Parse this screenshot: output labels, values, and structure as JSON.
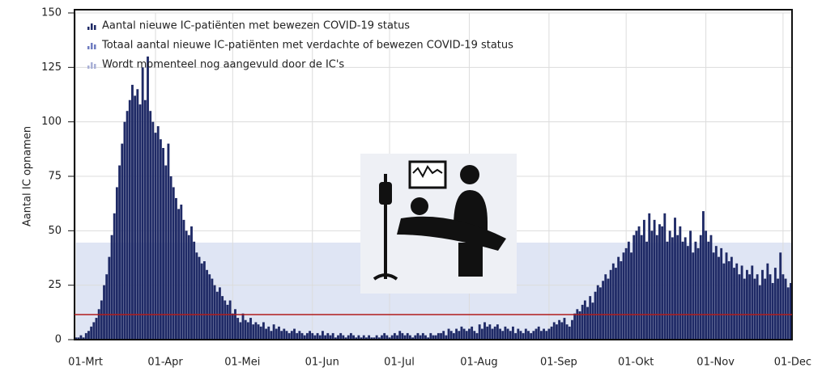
{
  "chart_data": {
    "type": "bar",
    "y_label": "Aantal IC opnamen",
    "legend": [
      {
        "name": "Aantal nieuwe IC-patiënten met bewezen COVID-19 status",
        "color": "#1f2a66"
      },
      {
        "name": "Totaal aantal nieuwe IC-patiënten met verdachte of bewezen COVID-19 status",
        "color": "#6f7cc0"
      },
      {
        "name": "Wordt momenteel nog aangevuld door de IC's",
        "color": "#a9b0d6"
      }
    ],
    "color": "#1f2a66",
    "reference_line": {
      "value": 11.5,
      "color": "#b01c1c"
    },
    "ylim": [
      0,
      150
    ],
    "yticks": [
      0,
      25,
      50,
      75,
      100,
      125,
      150
    ],
    "grid": true,
    "categories": [
      "01-Mrt",
      null,
      null,
      null,
      null,
      null,
      null,
      null,
      null,
      null,
      null,
      null,
      null,
      null,
      null,
      null,
      null,
      null,
      null,
      null,
      null,
      null,
      null,
      null,
      null,
      null,
      null,
      null,
      null,
      null,
      null,
      "01-Apr",
      null,
      null,
      null,
      null,
      null,
      null,
      null,
      null,
      null,
      null,
      null,
      null,
      null,
      null,
      null,
      null,
      null,
      null,
      null,
      null,
      null,
      null,
      null,
      null,
      null,
      null,
      null,
      null,
      null,
      "01-Mei",
      null,
      null,
      null,
      null,
      null,
      null,
      null,
      null,
      null,
      null,
      null,
      null,
      null,
      null,
      null,
      null,
      null,
      null,
      null,
      null,
      null,
      null,
      null,
      null,
      null,
      null,
      null,
      null,
      null,
      null,
      "01-Jun",
      null,
      null,
      null,
      null,
      null,
      null,
      null,
      null,
      null,
      null,
      null,
      null,
      null,
      null,
      null,
      null,
      null,
      null,
      null,
      null,
      null,
      null,
      null,
      null,
      null,
      null,
      null,
      null,
      null,
      "01-Jul",
      null,
      null,
      null,
      null,
      null,
      null,
      null,
      null,
      null,
      null,
      null,
      null,
      null,
      null,
      null,
      null,
      null,
      null,
      null,
      null,
      null,
      null,
      null,
      null,
      null,
      null,
      null,
      null,
      null,
      null,
      "01-Aug",
      null,
      null,
      null,
      null,
      null,
      null,
      null,
      null,
      null,
      null,
      null,
      null,
      null,
      null,
      null,
      null,
      null,
      null,
      null,
      null,
      null,
      null,
      null,
      null,
      null,
      null,
      null,
      null,
      null,
      null,
      "01-Sep",
      null,
      null,
      null,
      null,
      null,
      null,
      null,
      null,
      null,
      null,
      null,
      null,
      null,
      null,
      null,
      null,
      null,
      null,
      null,
      null,
      null,
      null,
      null,
      null,
      null,
      null,
      null,
      null,
      null,
      "01-Okt",
      null,
      null,
      null,
      null,
      null,
      null,
      null,
      null,
      null,
      null,
      null,
      null,
      null,
      null,
      null,
      null,
      null,
      null,
      null,
      null,
      null,
      null,
      null,
      null,
      null,
      null,
      null,
      null,
      null,
      null,
      "01-Nov",
      null,
      null,
      null,
      null,
      null,
      null,
      null,
      null,
      null,
      null,
      null,
      null,
      null,
      null,
      null,
      null,
      null,
      null,
      null,
      null,
      null,
      null,
      null,
      null,
      null,
      null,
      null,
      null,
      null,
      "01-Dec",
      null,
      null,
      null
    ],
    "values": [
      1,
      1,
      2,
      1,
      3,
      4,
      6,
      8,
      10,
      14,
      18,
      25,
      30,
      38,
      48,
      58,
      70,
      80,
      90,
      100,
      105,
      110,
      117,
      112,
      115,
      108,
      125,
      110,
      130,
      105,
      100,
      95,
      98,
      92,
      88,
      80,
      90,
      75,
      70,
      65,
      60,
      62,
      55,
      50,
      48,
      52,
      45,
      40,
      38,
      35,
      36,
      32,
      30,
      28,
      25,
      22,
      24,
      20,
      18,
      16,
      18,
      12,
      14,
      10,
      8,
      12,
      9,
      8,
      10,
      7,
      8,
      7,
      6,
      8,
      5,
      6,
      4,
      7,
      5,
      6,
      4,
      5,
      4,
      3,
      4,
      5,
      3,
      4,
      3,
      2,
      3,
      4,
      3,
      2,
      3,
      2,
      4,
      2,
      3,
      2,
      3,
      1,
      2,
      3,
      2,
      1,
      2,
      3,
      2,
      1,
      2,
      1,
      2,
      1,
      2,
      1,
      1,
      2,
      1,
      2,
      3,
      2,
      1,
      2,
      3,
      2,
      4,
      3,
      2,
      3,
      2,
      1,
      2,
      3,
      2,
      3,
      2,
      1,
      3,
      2,
      2,
      3,
      3,
      4,
      2,
      5,
      4,
      3,
      5,
      4,
      6,
      5,
      4,
      5,
      6,
      4,
      3,
      7,
      5,
      8,
      6,
      7,
      5,
      6,
      7,
      5,
      4,
      6,
      5,
      4,
      6,
      3,
      5,
      4,
      3,
      5,
      4,
      3,
      4,
      5,
      6,
      4,
      5,
      4,
      5,
      6,
      8,
      7,
      9,
      8,
      10,
      7,
      6,
      9,
      12,
      14,
      13,
      16,
      18,
      15,
      20,
      17,
      22,
      25,
      24,
      27,
      30,
      28,
      32,
      35,
      33,
      38,
      36,
      40,
      42,
      45,
      40,
      48,
      50,
      52,
      48,
      55,
      45,
      58,
      50,
      55,
      48,
      53,
      52,
      58,
      45,
      50,
      47,
      56,
      48,
      52,
      45,
      47,
      43,
      50,
      40,
      45,
      42,
      48,
      59,
      50,
      45,
      48,
      40,
      43,
      38,
      42,
      35,
      40,
      36,
      38,
      33,
      35,
      30,
      34,
      28,
      32,
      30,
      34,
      28,
      30,
      25,
      32,
      28,
      35,
      30,
      26,
      33,
      28,
      40,
      30,
      28,
      24,
      26
    ]
  }
}
